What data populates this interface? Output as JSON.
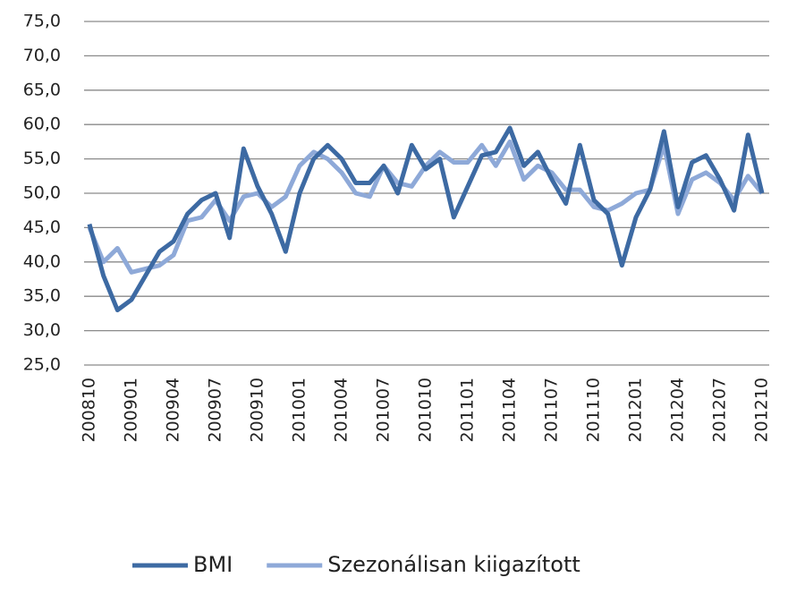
{
  "chart_data": {
    "type": "line",
    "categories": [
      "200810",
      null,
      null,
      "200901",
      null,
      null,
      "200904",
      null,
      null,
      "200907",
      null,
      null,
      "200910",
      null,
      null,
      "201001",
      null,
      null,
      "201004",
      null,
      null,
      "201007",
      null,
      null,
      "201010",
      null,
      null,
      "201101",
      null,
      null,
      "201104",
      null,
      null,
      "201107",
      null,
      null,
      "201110",
      null,
      null,
      "201201",
      null,
      null,
      "201204",
      null,
      null,
      "201207",
      null,
      null,
      "201210"
    ],
    "series": [
      {
        "name": "BMI",
        "color": "#3d6aa3",
        "values": [
          45.5,
          38,
          33,
          34.5,
          38,
          41.5,
          43,
          47,
          49,
          50,
          43.5,
          56.5,
          51,
          47,
          41.5,
          50,
          55,
          57,
          55,
          51.5,
          51.5,
          54,
          50,
          57,
          53.5,
          55,
          46.5,
          51,
          55.5,
          56,
          59.5,
          54,
          56,
          52,
          48.5,
          57,
          49,
          47,
          39.5,
          46.5,
          50.5,
          59,
          48,
          54.5,
          55.5,
          52,
          47.5,
          58.5,
          50
        ]
      },
      {
        "name": "Szezonálisan kiigazított",
        "color": "#8ea9d8",
        "values": [
          45,
          40,
          42,
          38.5,
          39,
          39.5,
          41,
          46,
          46.5,
          49,
          46,
          49.5,
          50,
          48,
          49.5,
          54,
          56,
          55,
          53,
          50,
          49.5,
          54,
          51.5,
          51,
          54,
          56,
          54.5,
          54.5,
          57,
          54,
          57.5,
          52,
          54,
          53,
          50.5,
          50.5,
          48,
          47.5,
          48.5,
          50,
          50.5,
          57,
          47,
          52,
          53,
          51.5,
          49,
          52.5,
          50
        ]
      }
    ],
    "ylim": [
      25,
      75
    ],
    "yticks": [
      {
        "value": 25,
        "label": "25,0"
      },
      {
        "value": 30,
        "label": "30,0"
      },
      {
        "value": 35,
        "label": "35,0"
      },
      {
        "value": 40,
        "label": "40,0"
      },
      {
        "value": 45,
        "label": "45,0"
      },
      {
        "value": 50,
        "label": "50,0"
      },
      {
        "value": 55,
        "label": "55,0"
      },
      {
        "value": 60,
        "label": "60,0"
      },
      {
        "value": 65,
        "label": "65,0"
      },
      {
        "value": 70,
        "label": "70,0"
      },
      {
        "value": 75,
        "label": "75,0"
      }
    ],
    "grid": true,
    "legend": "bottom"
  }
}
